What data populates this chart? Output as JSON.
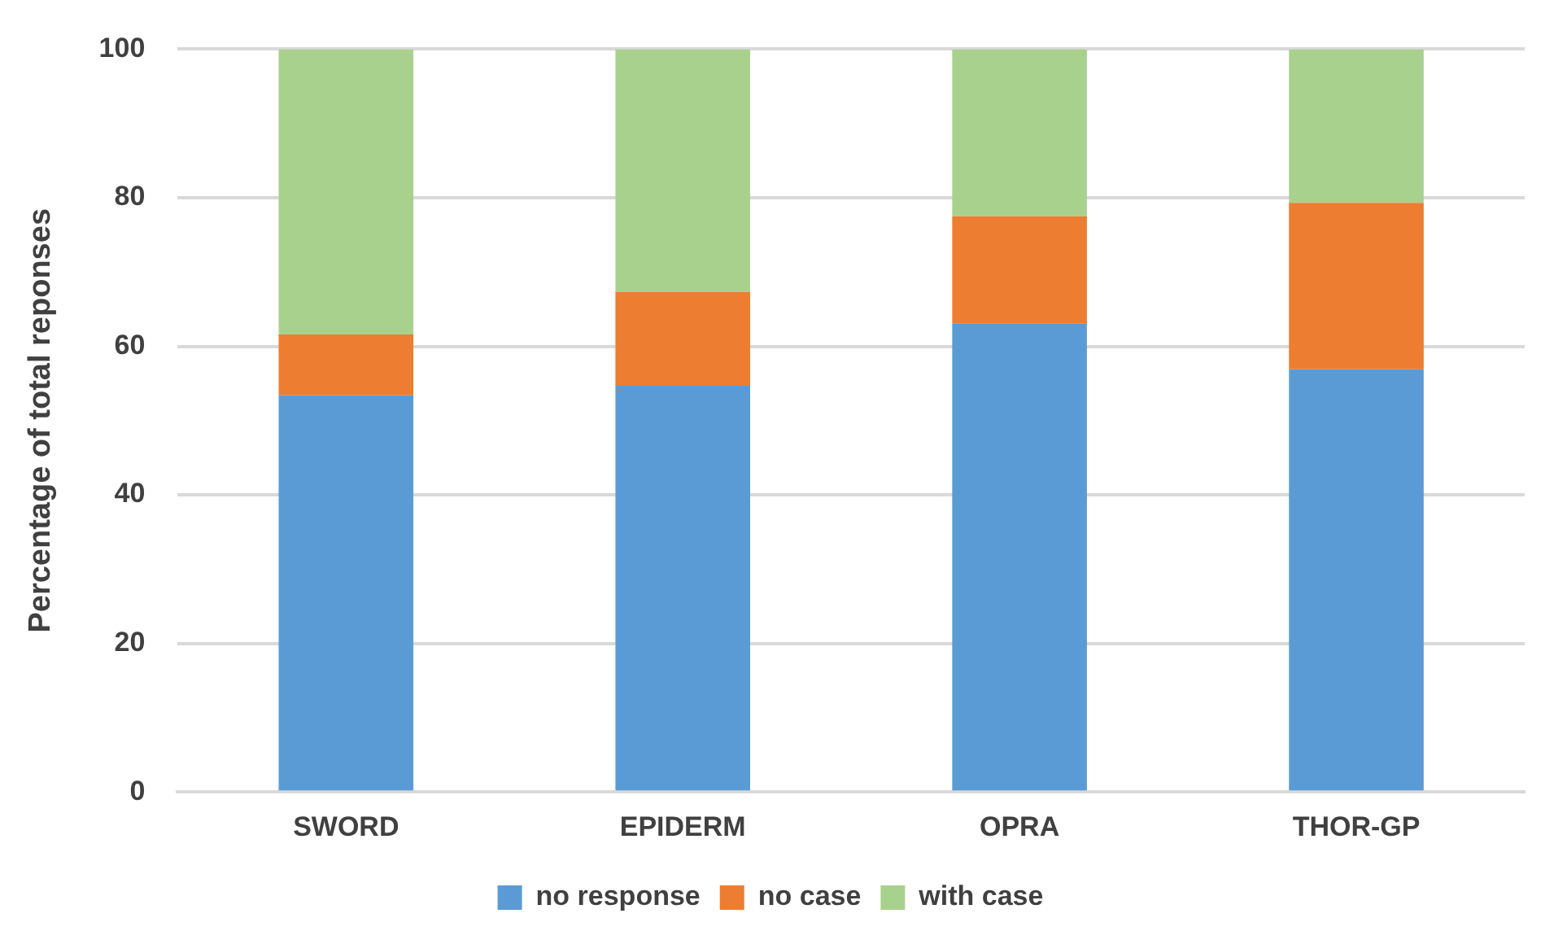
{
  "chart_data": {
    "type": "bar",
    "stacked": true,
    "ylabel": "Percentage of total reponses",
    "categories": [
      "SWORD",
      "EPIDERM",
      "OPRA",
      "THOR-GP"
    ],
    "series": [
      {
        "name": "no response",
        "color": "#5b9bd5",
        "values": [
          53.4,
          54.7,
          63.1,
          56.9
        ]
      },
      {
        "name": "no case",
        "color": "#ed7d31",
        "values": [
          8.2,
          12.6,
          14.4,
          22.4
        ]
      },
      {
        "name": "with case",
        "color": "#a9d18e",
        "values": [
          38.4,
          32.7,
          22.5,
          20.7
        ]
      }
    ],
    "ylim": [
      0,
      100
    ],
    "yticks": [
      0,
      20,
      40,
      60,
      80,
      100
    ],
    "grid": "y",
    "legend": "bottom"
  }
}
